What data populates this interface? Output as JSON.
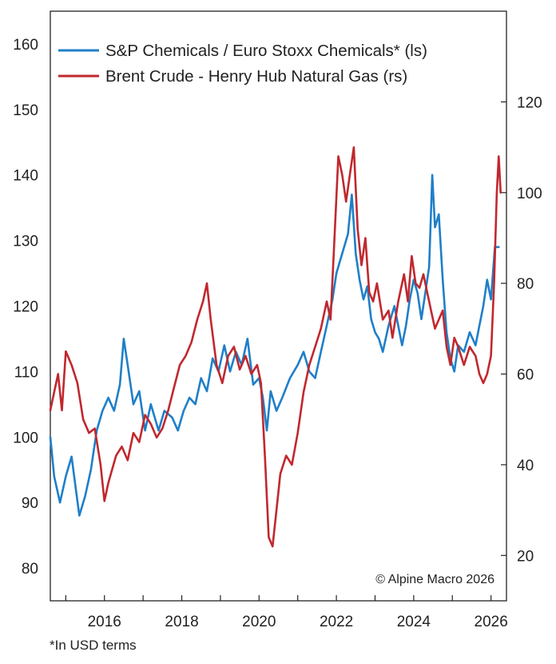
{
  "chart_data": {
    "type": "line",
    "title": "",
    "xlabel": "",
    "x_ticks": [
      "2016",
      "2018",
      "2020",
      "2022",
      "2024",
      "2026"
    ],
    "xlim": [
      2014.6,
      2026.4
    ],
    "y_left": {
      "label": "",
      "ticks": [
        "80",
        "90",
        "100",
        "110",
        "120",
        "130",
        "140",
        "150",
        "160"
      ],
      "ylim": [
        75,
        165
      ]
    },
    "y_right": {
      "label": "",
      "ticks": [
        "20",
        "40",
        "60",
        "80",
        "100",
        "120"
      ],
      "ylim": [
        10,
        140
      ]
    },
    "grid": false,
    "legend_placement": "top-left",
    "series": [
      {
        "name": "S&P Chemicals / Euro Stoxx Chemicals* (ls)",
        "axis": "left",
        "color": "#1f7fc8",
        "points": [
          [
            2014.6,
            100
          ],
          [
            2014.7,
            94
          ],
          [
            2014.85,
            90
          ],
          [
            2015.0,
            94
          ],
          [
            2015.15,
            97
          ],
          [
            2015.35,
            88
          ],
          [
            2015.5,
            91
          ],
          [
            2015.65,
            95
          ],
          [
            2015.8,
            101
          ],
          [
            2015.95,
            104
          ],
          [
            2016.1,
            106
          ],
          [
            2016.25,
            104
          ],
          [
            2016.4,
            108
          ],
          [
            2016.5,
            115
          ],
          [
            2016.6,
            111
          ],
          [
            2016.75,
            105
          ],
          [
            2016.9,
            107
          ],
          [
            2017.05,
            101
          ],
          [
            2017.2,
            105
          ],
          [
            2017.4,
            101
          ],
          [
            2017.55,
            104
          ],
          [
            2017.75,
            103
          ],
          [
            2017.9,
            101
          ],
          [
            2018.05,
            104
          ],
          [
            2018.2,
            106
          ],
          [
            2018.35,
            105
          ],
          [
            2018.5,
            109
          ],
          [
            2018.65,
            107
          ],
          [
            2018.8,
            112
          ],
          [
            2018.95,
            110
          ],
          [
            2019.1,
            114
          ],
          [
            2019.25,
            110
          ],
          [
            2019.4,
            113
          ],
          [
            2019.55,
            111
          ],
          [
            2019.7,
            115
          ],
          [
            2019.85,
            108
          ],
          [
            2020.0,
            109
          ],
          [
            2020.1,
            106
          ],
          [
            2020.2,
            101
          ],
          [
            2020.3,
            107
          ],
          [
            2020.45,
            104
          ],
          [
            2020.6,
            106
          ],
          [
            2020.8,
            109
          ],
          [
            2021.0,
            111
          ],
          [
            2021.15,
            113
          ],
          [
            2021.3,
            110
          ],
          [
            2021.45,
            109
          ],
          [
            2021.6,
            113
          ],
          [
            2021.75,
            117
          ],
          [
            2021.9,
            121
          ],
          [
            2022.0,
            125
          ],
          [
            2022.1,
            127
          ],
          [
            2022.2,
            129
          ],
          [
            2022.3,
            131
          ],
          [
            2022.4,
            137
          ],
          [
            2022.5,
            128
          ],
          [
            2022.6,
            124
          ],
          [
            2022.7,
            121
          ],
          [
            2022.8,
            123
          ],
          [
            2022.9,
            118
          ],
          [
            2023.0,
            116
          ],
          [
            2023.1,
            115
          ],
          [
            2023.2,
            113
          ],
          [
            2023.35,
            117
          ],
          [
            2023.5,
            120
          ],
          [
            2023.6,
            117
          ],
          [
            2023.7,
            114
          ],
          [
            2023.8,
            117
          ],
          [
            2023.9,
            121
          ],
          [
            2024.0,
            124
          ],
          [
            2024.1,
            122
          ],
          [
            2024.2,
            118
          ],
          [
            2024.3,
            122
          ],
          [
            2024.4,
            126
          ],
          [
            2024.48,
            140
          ],
          [
            2024.55,
            132
          ],
          [
            2024.65,
            134
          ],
          [
            2024.75,
            124
          ],
          [
            2024.85,
            116
          ],
          [
            2024.95,
            112
          ],
          [
            2025.05,
            110
          ],
          [
            2025.15,
            114
          ],
          [
            2025.3,
            113
          ],
          [
            2025.45,
            116
          ],
          [
            2025.6,
            114
          ],
          [
            2025.7,
            117
          ],
          [
            2025.8,
            120
          ],
          [
            2025.9,
            124
          ],
          [
            2026.0,
            121
          ],
          [
            2026.1,
            129
          ],
          [
            2026.2,
            129
          ]
        ]
      },
      {
        "name": "Brent Crude - Henry Hub Natural Gas (rs)",
        "axis": "right",
        "color": "#c0282e",
        "points": [
          [
            2014.6,
            52
          ],
          [
            2014.7,
            56
          ],
          [
            2014.8,
            60
          ],
          [
            2014.9,
            52
          ],
          [
            2015.0,
            65
          ],
          [
            2015.15,
            62
          ],
          [
            2015.3,
            58
          ],
          [
            2015.45,
            50
          ],
          [
            2015.6,
            47
          ],
          [
            2015.75,
            48
          ],
          [
            2015.9,
            40
          ],
          [
            2016.0,
            32
          ],
          [
            2016.1,
            36
          ],
          [
            2016.2,
            39
          ],
          [
            2016.3,
            42
          ],
          [
            2016.45,
            44
          ],
          [
            2016.6,
            41
          ],
          [
            2016.75,
            47
          ],
          [
            2016.9,
            45
          ],
          [
            2017.05,
            51
          ],
          [
            2017.2,
            49
          ],
          [
            2017.35,
            46
          ],
          [
            2017.5,
            48
          ],
          [
            2017.65,
            52
          ],
          [
            2017.8,
            57
          ],
          [
            2017.95,
            62
          ],
          [
            2018.1,
            64
          ],
          [
            2018.25,
            67
          ],
          [
            2018.4,
            72
          ],
          [
            2018.55,
            76
          ],
          [
            2018.65,
            80
          ],
          [
            2018.75,
            72
          ],
          [
            2018.9,
            62
          ],
          [
            2019.05,
            58
          ],
          [
            2019.2,
            64
          ],
          [
            2019.35,
            66
          ],
          [
            2019.5,
            61
          ],
          [
            2019.65,
            64
          ],
          [
            2019.8,
            60
          ],
          [
            2019.95,
            62
          ],
          [
            2020.05,
            58
          ],
          [
            2020.15,
            42
          ],
          [
            2020.25,
            24
          ],
          [
            2020.35,
            22
          ],
          [
            2020.45,
            30
          ],
          [
            2020.55,
            38
          ],
          [
            2020.7,
            42
          ],
          [
            2020.85,
            40
          ],
          [
            2021.0,
            47
          ],
          [
            2021.15,
            56
          ],
          [
            2021.3,
            62
          ],
          [
            2021.45,
            66
          ],
          [
            2021.6,
            70
          ],
          [
            2021.75,
            76
          ],
          [
            2021.85,
            72
          ],
          [
            2021.95,
            90
          ],
          [
            2022.05,
            108
          ],
          [
            2022.15,
            104
          ],
          [
            2022.25,
            98
          ],
          [
            2022.35,
            104
          ],
          [
            2022.45,
            110
          ],
          [
            2022.55,
            92
          ],
          [
            2022.65,
            84
          ],
          [
            2022.75,
            90
          ],
          [
            2022.85,
            78
          ],
          [
            2022.95,
            76
          ],
          [
            2023.05,
            80
          ],
          [
            2023.2,
            72
          ],
          [
            2023.35,
            74
          ],
          [
            2023.45,
            68
          ],
          [
            2023.6,
            76
          ],
          [
            2023.75,
            82
          ],
          [
            2023.85,
            76
          ],
          [
            2023.95,
            86
          ],
          [
            2024.05,
            80
          ],
          [
            2024.15,
            79
          ],
          [
            2024.25,
            82
          ],
          [
            2024.35,
            78
          ],
          [
            2024.45,
            74
          ],
          [
            2024.55,
            70
          ],
          [
            2024.65,
            72
          ],
          [
            2024.75,
            74
          ],
          [
            2024.85,
            66
          ],
          [
            2024.95,
            62
          ],
          [
            2025.05,
            68
          ],
          [
            2025.15,
            66
          ],
          [
            2025.3,
            62
          ],
          [
            2025.45,
            66
          ],
          [
            2025.6,
            64
          ],
          [
            2025.7,
            60
          ],
          [
            2025.8,
            58
          ],
          [
            2025.9,
            60
          ],
          [
            2026.0,
            64
          ],
          [
            2026.08,
            80
          ],
          [
            2026.15,
            100
          ],
          [
            2026.2,
            108
          ],
          [
            2026.25,
            100
          ]
        ]
      }
    ]
  },
  "annotations": {
    "copyright": "© Alpine Macro 2026",
    "footnote": "*In USD terms"
  }
}
